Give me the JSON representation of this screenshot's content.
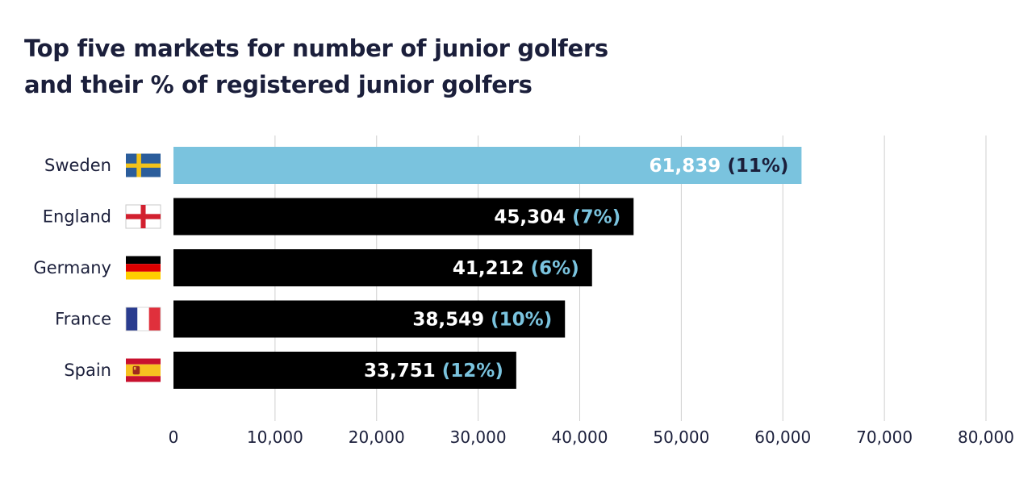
{
  "title_lines": [
    "Top five markets for number of junior golfers",
    "and their % of registered junior golfers"
  ],
  "colors": {
    "highlight_bar": "#7ac3de",
    "bar": "#000000",
    "value_text": "#ffffff",
    "pct_text_on_dark": "#7ac3de",
    "pct_text_on_highlight": "#1b1f3b",
    "text": "#1b1f3b",
    "grid": "#cfcfcf"
  },
  "chart_data": {
    "type": "bar",
    "orientation": "horizontal",
    "title": "Top five markets for number of junior golfers and their % of registered junior golfers",
    "categories": [
      "Sweden",
      "England",
      "Germany",
      "France",
      "Spain"
    ],
    "values": [
      61839,
      45304,
      41212,
      38549,
      33751
    ],
    "value_labels": [
      "61,839",
      "45,304",
      "41,212",
      "38,549",
      "33,751"
    ],
    "percent_labels": [
      "(11%)",
      "(7%)",
      "(6%)",
      "(10%)",
      "(12%)"
    ],
    "flags": [
      "sweden-flag",
      "england-flag",
      "germany-flag",
      "france-flag",
      "spain-flag"
    ],
    "highlighted_category": "Sweden",
    "xlim": [
      0,
      80000
    ],
    "xticks": [
      0,
      10000,
      20000,
      30000,
      40000,
      50000,
      60000,
      70000,
      80000
    ],
    "xtick_labels": [
      "0",
      "10,000",
      "20,000",
      "30,000",
      "40,000",
      "50,000",
      "60,000",
      "70,000",
      "80,000"
    ],
    "grid": "vertical",
    "legend": "none",
    "xlabel": "",
    "ylabel": ""
  }
}
